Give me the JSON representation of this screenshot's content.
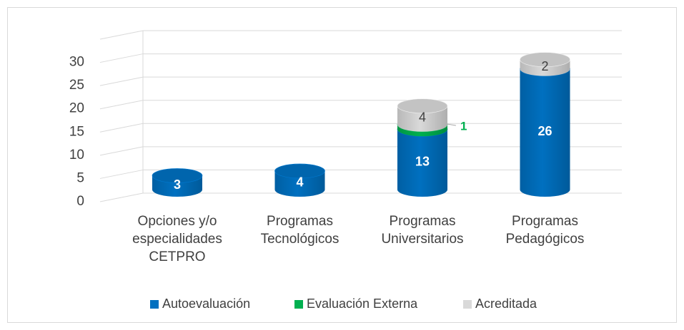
{
  "chart_data": {
    "type": "bar3d",
    "categories": [
      "Opciones y/o\nespecialidades\nCETPRO",
      "Programas\nTecnológicos",
      "Programas\nUniversitarios",
      "Programas\nPedagógicos"
    ],
    "series": [
      {
        "name": "Autoevaluación",
        "color": "#0070C0",
        "values": [
          3,
          4,
          13,
          26
        ]
      },
      {
        "name": "Evaluación Externa",
        "color": "#00B050",
        "values": [
          0,
          0,
          1,
          0
        ]
      },
      {
        "name": "Acreditada",
        "color": "#D9D9D9",
        "values": [
          0,
          0,
          4,
          2
        ]
      }
    ],
    "stacked": true,
    "ylim": [
      0,
      35
    ],
    "yticks": [
      0,
      5,
      10,
      15,
      20,
      25,
      30
    ],
    "grid": true,
    "legend": "bottom"
  }
}
